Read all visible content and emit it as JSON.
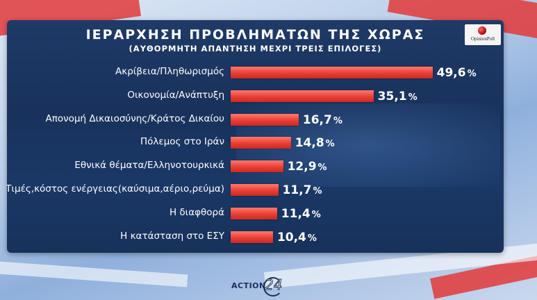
{
  "chart_data": {
    "type": "bar",
    "orientation": "horizontal",
    "title": "ΙΕΡΑΡΧΗΣΗ ΠΡΟΒΛΗΜΑΤΩΝ ΤΗΣ ΧΩΡΑΣ",
    "subtitle": "(ΑΥΘΟΡΜΗΤΗ ΑΠΑΝΤΗΣΗ ΜΕΧΡΙ ΤΡΕΙΣ ΕΠΙΛΟΓΕΣ)",
    "categories": [
      "Ακρίβεια/Πληθωρισμός",
      "Οικονομία/Ανάπτυξη",
      "Απονομή Δικαιοσύνης/Κράτος Δικαίου",
      "Πόλεμος στο Ιράν",
      "Εθνικά θέματα/Ελληνοτουρκικά",
      "Τιμές,κόστος ενέργειας(καύσιμα,αέριο,ρεύμα)",
      "Η διαφθορά",
      "Η κατάσταση στο ΕΣΥ"
    ],
    "values": [
      49.6,
      35.1,
      16.7,
      14.8,
      12.9,
      11.7,
      11.4,
      10.4
    ],
    "value_labels": [
      "49,6",
      "35,1",
      "16,7",
      "14,8",
      "12,9",
      "11,7",
      "11,4",
      "10,4"
    ],
    "value_suffix": "%",
    "bar_color": "#e8392f",
    "xlim": [
      0,
      50
    ]
  },
  "logo": {
    "text": "OpinionPoll"
  },
  "brand": {
    "text": "ACTION",
    "number": "24"
  }
}
